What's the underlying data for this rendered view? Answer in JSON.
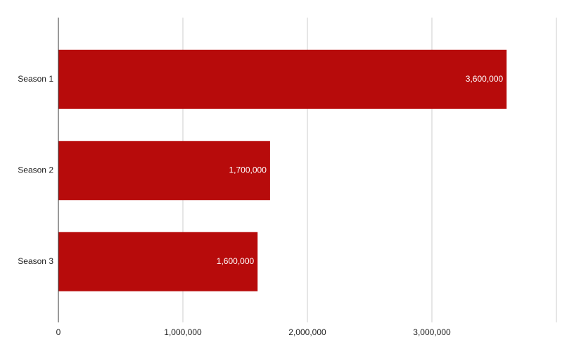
{
  "chart_data": {
    "type": "bar",
    "orientation": "horizontal",
    "categories": [
      "Season 1",
      "Season 2",
      "Season 3"
    ],
    "values": [
      3600000,
      1700000,
      1600000
    ],
    "value_labels": [
      "3,600,000",
      "1,700,000",
      "1,600,000"
    ],
    "color": "#b70b0b",
    "xlim": [
      0,
      4000000
    ],
    "xticks": [
      0,
      {
        "value": 1000000,
        "label": "1,000,000"
      },
      {
        "value": 2000000,
        "label": "2,000,000"
      },
      {
        "value": 3000000,
        "label": "3,000,000"
      }
    ],
    "grid": true
  }
}
